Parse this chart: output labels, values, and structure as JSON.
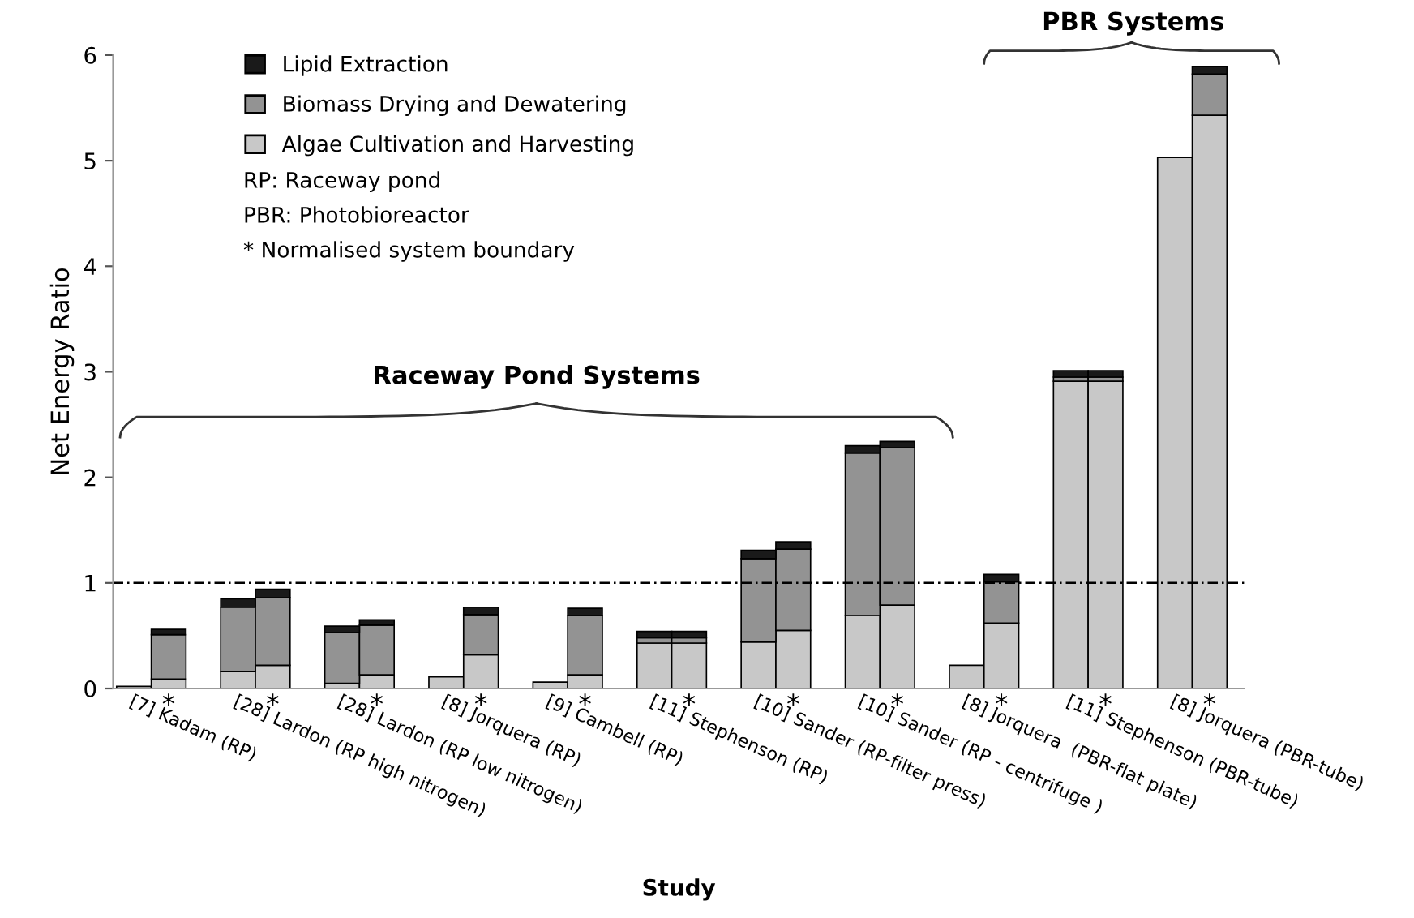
{
  "chart_data": {
    "type": "bar",
    "stacked": true,
    "xlabel": "Study",
    "ylabel": "Net Energy Ratio",
    "categories": [
      "[7] Kadam (RP)",
      "*",
      null,
      "[28] Lardon (RP high nitrogen)",
      "*",
      null,
      "[28] Lardon (RP low nitrogen)",
      "*",
      null,
      "[8] Jorquera (RP)",
      "*",
      null,
      "[9] Cambell (RP)",
      "*",
      null,
      "[11] Stephenson (RP)",
      "*",
      null,
      "[10] Sander (RP-filter press)",
      "*",
      null,
      "[10] Sander (RP - centrifuge )",
      "*",
      null,
      "[8] Jorquera  (PBR-flat plate)",
      "*",
      null,
      "[11] Stephenson (PBR-tube)",
      "*",
      null,
      "[8] Jorquera (PBR-tube)",
      "*",
      null
    ],
    "series": [
      {
        "name": "Algae Cultivation and Harvesting",
        "color": "#c8c8c8",
        "values": [
          0.02,
          0.09,
          null,
          0.16,
          0.22,
          null,
          0.05,
          0.13,
          null,
          0.11,
          0.32,
          null,
          0.06,
          0.13,
          null,
          0.43,
          0.43,
          null,
          0.44,
          0.55,
          null,
          0.69,
          0.79,
          null,
          0.22,
          0.62,
          null,
          2.91,
          2.91,
          null,
          5.03,
          5.43,
          null
        ]
      },
      {
        "name": "Biomass Drying and Dewatering",
        "color": "#939393",
        "values": [
          null,
          0.42,
          null,
          0.61,
          0.64,
          null,
          0.48,
          0.47,
          null,
          null,
          0.38,
          null,
          null,
          0.56,
          null,
          0.05,
          0.05,
          null,
          0.79,
          0.77,
          null,
          1.54,
          1.49,
          null,
          null,
          0.39,
          null,
          0.04,
          0.04,
          null,
          null,
          0.39,
          null
        ]
      },
      {
        "name": "Lipid Extraction",
        "color": "#1a1a1a",
        "values": [
          null,
          0.05,
          null,
          0.08,
          0.08,
          null,
          0.06,
          0.05,
          null,
          null,
          0.07,
          null,
          null,
          0.07,
          null,
          0.06,
          0.06,
          null,
          0.08,
          0.07,
          null,
          0.07,
          0.06,
          null,
          null,
          0.07,
          null,
          0.06,
          0.06,
          null,
          null,
          0.07,
          null
        ]
      }
    ],
    "ylim": [
      0,
      6
    ],
    "yticks": [
      0,
      1,
      2,
      3,
      4,
      5,
      6
    ],
    "grid": false,
    "legend": "top left",
    "ref_lines": [
      {
        "axis": "y",
        "value": 1,
        "color": "#000000",
        "line_style": "dashed"
      }
    ],
    "annotations": [
      "RP: Raceway pond",
      "PBR: Photobioreactor",
      "* Normalised system boundary",
      "Raceway Pond Systems",
      "PBR Systems"
    ]
  }
}
